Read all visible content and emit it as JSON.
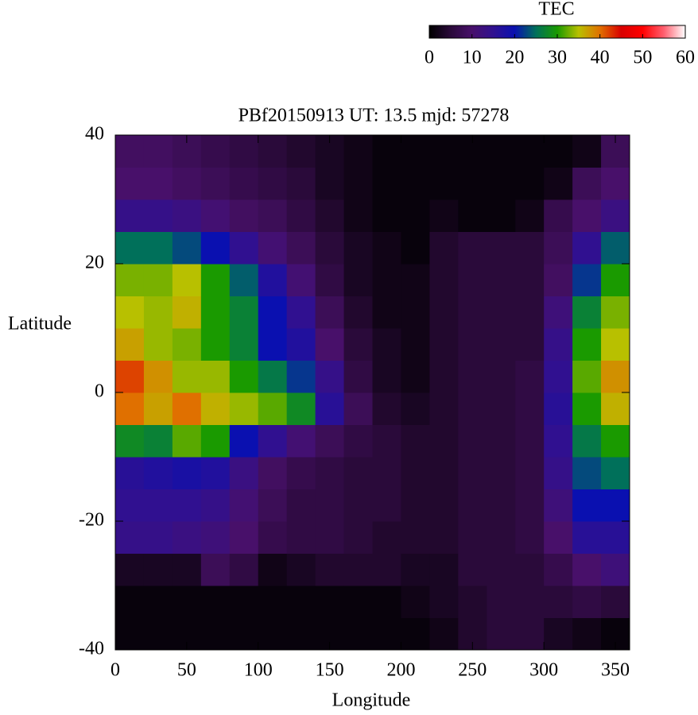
{
  "chart_data": {
    "type": "heatmap",
    "title": "PBf20150913  UT: 13.5  mjd: 57278",
    "xlabel": "Longitude",
    "ylabel": "Latitude",
    "colorbar_label": "TEC",
    "xlim": [
      0,
      360
    ],
    "ylim": [
      -40,
      40
    ],
    "xticks": [
      0,
      50,
      100,
      150,
      200,
      250,
      300,
      350
    ],
    "yticks": [
      -40,
      -20,
      0,
      20,
      40
    ],
    "zlim": [
      0,
      60
    ],
    "zticks": [
      0,
      10,
      20,
      30,
      40,
      50,
      60
    ],
    "colorscale": [
      "#000000",
      "#2a0a3a",
      "#48106a",
      "#301090",
      "#0a10b0",
      "#00705a",
      "#1a9a00",
      "#b8c000",
      "#e07000",
      "#d80000",
      "#ff0000",
      "#ff6070",
      "#ffffff"
    ],
    "x": [
      10,
      30,
      50,
      70,
      90,
      110,
      130,
      150,
      170,
      190,
      210,
      230,
      250,
      270,
      290,
      310,
      330,
      350
    ],
    "y": [
      -37.5,
      -32.5,
      -27.5,
      -22.5,
      -17.5,
      -12.5,
      -7.5,
      -2.5,
      2.5,
      7.5,
      12.5,
      17.5,
      22.5,
      27.5,
      32.5,
      37.5
    ],
    "z": [
      [
        1,
        1,
        1,
        1,
        1,
        1,
        1,
        1,
        1,
        1,
        1,
        2,
        4,
        5,
        5,
        3,
        2,
        1
      ],
      [
        1,
        1,
        1,
        1,
        1,
        1,
        1,
        1,
        1,
        1,
        2,
        3,
        4,
        5,
        5,
        5,
        6,
        5
      ],
      [
        3,
        3,
        3,
        8,
        6,
        2,
        3,
        4,
        4,
        4,
        3,
        3,
        5,
        5,
        5,
        7,
        10,
        12
      ],
      [
        14,
        14,
        13,
        12,
        10,
        7,
        6,
        6,
        5,
        4,
        4,
        4,
        5,
        5,
        6,
        10,
        16,
        16
      ],
      [
        15,
        15,
        15,
        14,
        11,
        8,
        6,
        6,
        5,
        5,
        4,
        4,
        5,
        5,
        6,
        12,
        20,
        20
      ],
      [
        16,
        17,
        18,
        17,
        13,
        9,
        7,
        6,
        5,
        5,
        4,
        4,
        5,
        5,
        6,
        14,
        23,
        25
      ],
      [
        28,
        27,
        32,
        30,
        20,
        15,
        11,
        8,
        6,
        5,
        4,
        4,
        5,
        5,
        6,
        15,
        26,
        30
      ],
      [
        40,
        37,
        40,
        36,
        34,
        32,
        28,
        16,
        8,
        4,
        3,
        4,
        5,
        5,
        6,
        16,
        30,
        36
      ],
      [
        42,
        38,
        34,
        34,
        30,
        26,
        22,
        14,
        6,
        3,
        2,
        4,
        5,
        5,
        6,
        15,
        32,
        38
      ],
      [
        37,
        34,
        33,
        30,
        27,
        20,
        17,
        10,
        5,
        3,
        2,
        4,
        5,
        5,
        5,
        14,
        30,
        35
      ],
      [
        35,
        34,
        36,
        30,
        27,
        20,
        15,
        8,
        4,
        2,
        2,
        4,
        5,
        5,
        5,
        12,
        27,
        33
      ],
      [
        33,
        33,
        35,
        30,
        24,
        17,
        11,
        6,
        3,
        2,
        2,
        4,
        5,
        5,
        5,
        9,
        22,
        30
      ],
      [
        25,
        25,
        23,
        20,
        15,
        11,
        8,
        5,
        3,
        2,
        1,
        4,
        5,
        5,
        5,
        8,
        15,
        24
      ],
      [
        14,
        14,
        13,
        11,
        9,
        8,
        6,
        4,
        2,
        1,
        1,
        2,
        1,
        1,
        2,
        7,
        10,
        13
      ],
      [
        10,
        10,
        9,
        8,
        7,
        6,
        5,
        3,
        2,
        1,
        1,
        1,
        1,
        1,
        1,
        2,
        8,
        10
      ],
      [
        9,
        9,
        8,
        7,
        6,
        5,
        4,
        3,
        2,
        1,
        1,
        1,
        1,
        1,
        1,
        1,
        2,
        8
      ]
    ]
  }
}
